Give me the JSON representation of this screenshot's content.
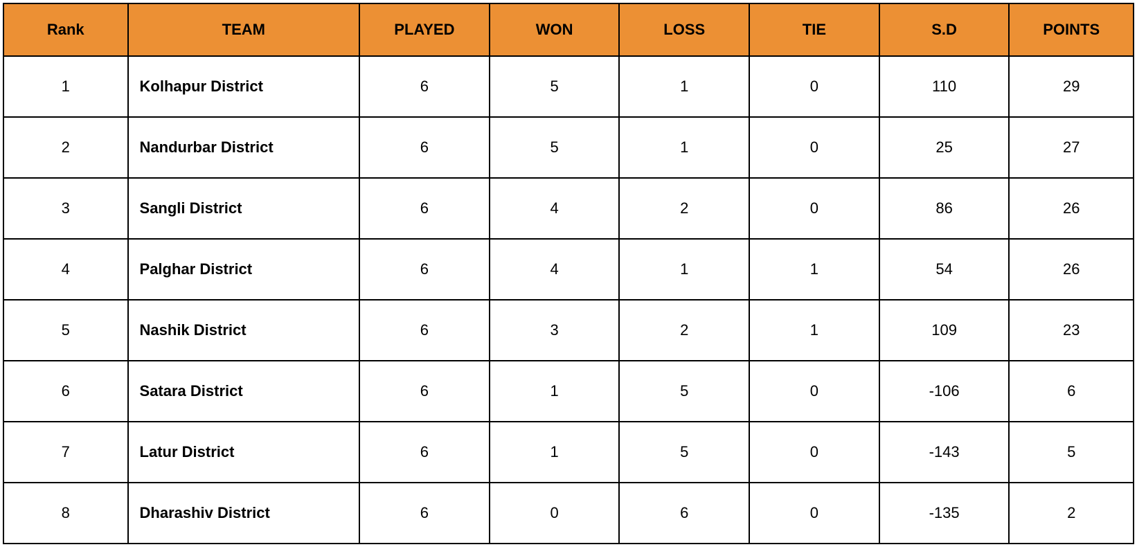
{
  "table": {
    "type": "table",
    "header_bg_color": "#ec9034",
    "header_text_color": "#000000",
    "cell_bg_color": "#ffffff",
    "cell_text_color": "#000000",
    "border_color": "#000000",
    "header_font_size": 22,
    "cell_font_size": 22,
    "columns": [
      {
        "label": "Rank",
        "align": "center",
        "width_pct": 11
      },
      {
        "label": "TEAM",
        "align": "left",
        "width_pct": 20.5,
        "bold": true
      },
      {
        "label": "PLAYED",
        "align": "center",
        "width_pct": 11.5
      },
      {
        "label": "WON",
        "align": "center",
        "width_pct": 11.5
      },
      {
        "label": "LOSS",
        "align": "center",
        "width_pct": 11.5
      },
      {
        "label": "TIE",
        "align": "center",
        "width_pct": 11.5
      },
      {
        "label": "S.D",
        "align": "center",
        "width_pct": 11.5
      },
      {
        "label": "POINTS",
        "align": "center",
        "width_pct": 11
      }
    ],
    "rows": [
      {
        "rank": "1",
        "team": "Kolhapur District",
        "played": "6",
        "won": "5",
        "loss": "1",
        "tie": "0",
        "sd": "110",
        "points": "29"
      },
      {
        "rank": "2",
        "team": "Nandurbar District",
        "played": "6",
        "won": "5",
        "loss": "1",
        "tie": "0",
        "sd": "25",
        "points": "27"
      },
      {
        "rank": "3",
        "team": "Sangli District",
        "played": "6",
        "won": "4",
        "loss": "2",
        "tie": "0",
        "sd": "86",
        "points": "26"
      },
      {
        "rank": "4",
        "team": "Palghar District",
        "played": "6",
        "won": "4",
        "loss": "1",
        "tie": "1",
        "sd": "54",
        "points": "26"
      },
      {
        "rank": "5",
        "team": "Nashik District",
        "played": "6",
        "won": "3",
        "loss": "2",
        "tie": "1",
        "sd": "109",
        "points": "23"
      },
      {
        "rank": "6",
        "team": "Satara District",
        "played": "6",
        "won": "1",
        "loss": "5",
        "tie": "0",
        "sd": "-106",
        "points": "6"
      },
      {
        "rank": "7",
        "team": "Latur District",
        "played": "6",
        "won": "1",
        "loss": "5",
        "tie": "0",
        "sd": "-143",
        "points": "5"
      },
      {
        "rank": "8",
        "team": "Dharashiv District",
        "played": "6",
        "won": "0",
        "loss": "6",
        "tie": "0",
        "sd": "-135",
        "points": "2"
      }
    ]
  }
}
